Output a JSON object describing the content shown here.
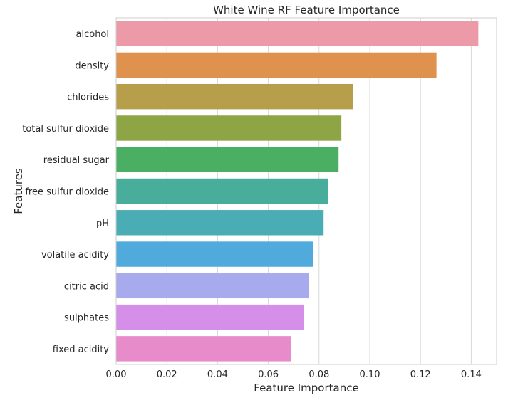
{
  "chart_data": {
    "type": "bar",
    "orientation": "horizontal",
    "title": "White Wine RF Feature Importance",
    "xlabel": "Feature Importance",
    "ylabel": "Features",
    "xlim": [
      0,
      0.15
    ],
    "grid": true,
    "x_ticks": [
      "0.00",
      "0.02",
      "0.04",
      "0.06",
      "0.08",
      "0.10",
      "0.12",
      "0.14"
    ],
    "categories": [
      "alcohol",
      "density",
      "chlorides",
      "total sulfur dioxide",
      "residual sugar",
      "free sulfur dioxide",
      "pH",
      "volatile acidity",
      "citric acid",
      "sulphates",
      "fixed acidity"
    ],
    "values": [
      0.1428,
      0.1263,
      0.0935,
      0.0888,
      0.0877,
      0.0837,
      0.0818,
      0.0776,
      0.0759,
      0.0739,
      0.069
    ],
    "colors": [
      "#ec9aa8",
      "#df914e",
      "#b79e4a",
      "#8da545",
      "#4baf63",
      "#48ad9a",
      "#4aacb4",
      "#50aadb",
      "#a7aaec",
      "#d68fe8",
      "#e88bcb"
    ]
  }
}
